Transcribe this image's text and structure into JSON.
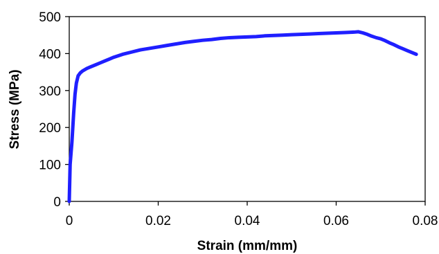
{
  "chart_data": {
    "type": "line",
    "title": "",
    "xlabel": "Strain  (mm/mm)",
    "ylabel": "Stress  (MPa)",
    "xlim": [
      0,
      0.08
    ],
    "ylim": [
      0,
      500
    ],
    "x_ticks": [
      "0",
      "0.02",
      "0.04",
      "0.06",
      "0.08"
    ],
    "y_ticks": [
      "0",
      "100",
      "200",
      "300",
      "400",
      "500"
    ],
    "grid": false,
    "legend": "none",
    "series": [
      {
        "color": "#1f1fff",
        "x": [
          0,
          0.0002,
          0.0004,
          0.0006,
          0.0008,
          0.001,
          0.0013,
          0.0016,
          0.002,
          0.0025,
          0.003,
          0.004,
          0.005,
          0.006,
          0.007,
          0.008,
          0.009,
          0.01,
          0.012,
          0.014,
          0.016,
          0.018,
          0.02,
          0.022,
          0.024,
          0.026,
          0.028,
          0.03,
          0.032,
          0.034,
          0.036,
          0.038,
          0.04,
          0.042,
          0.044,
          0.046,
          0.048,
          0.05,
          0.052,
          0.054,
          0.056,
          0.058,
          0.06,
          0.062,
          0.064,
          0.065,
          0.066,
          0.067,
          0.068,
          0.069,
          0.07,
          0.071,
          0.072,
          0.073,
          0.074,
          0.075,
          0.076,
          0.077,
          0.078
        ],
        "y": [
          0,
          100,
          130,
          160,
          200,
          240,
          290,
          320,
          340,
          348,
          353,
          360,
          365,
          370,
          375,
          380,
          385,
          390,
          398,
          404,
          410,
          414,
          418,
          422,
          426,
          430,
          433,
          436,
          438,
          441,
          443,
          444,
          445,
          446,
          448,
          449,
          450,
          451,
          452,
          453,
          454,
          455,
          456,
          457,
          458,
          459,
          456,
          452,
          447,
          443,
          440,
          435,
          429,
          424,
          418,
          413,
          408,
          403,
          398
        ]
      }
    ]
  }
}
